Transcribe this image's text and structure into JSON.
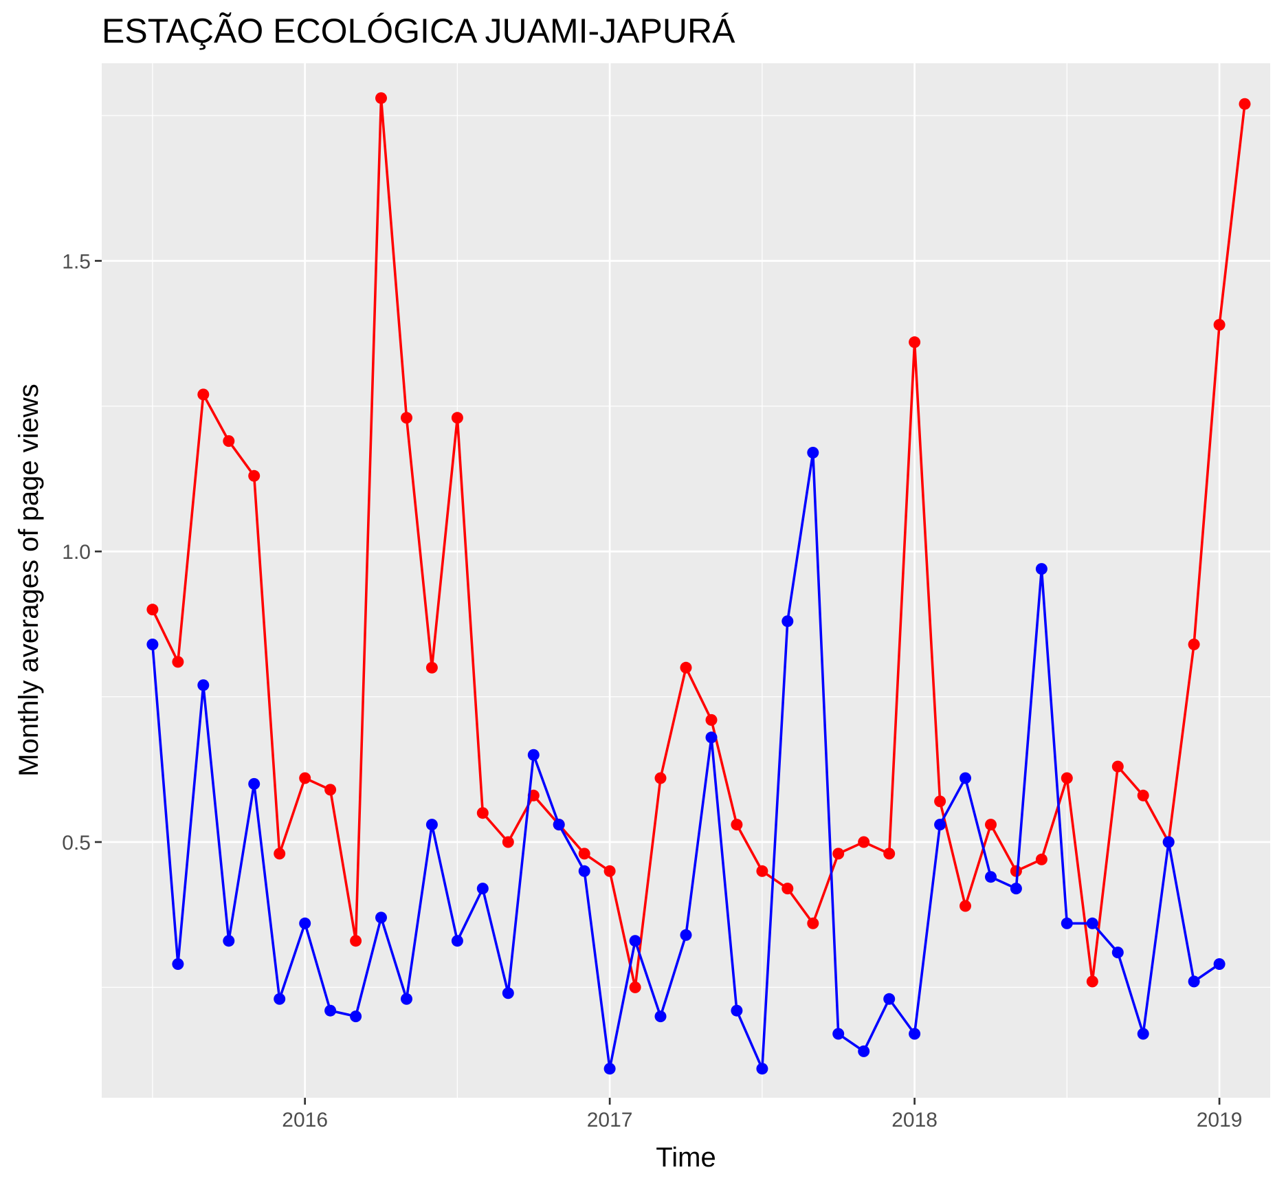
{
  "chart_data": {
    "type": "line",
    "title": "ESTAÇÃO ECOLÓGICA JUAMI-JAPURÁ",
    "xlabel": "Time",
    "ylabel": "Monthly averages of page views",
    "x_start": "2015-07",
    "x_ticks": [
      {
        "label": "2016",
        "value": "2016-01"
      },
      {
        "label": "2017",
        "value": "2017-01"
      },
      {
        "label": "2018",
        "value": "2018-01"
      },
      {
        "label": "2019",
        "value": "2019-01"
      }
    ],
    "y_ticks": [
      {
        "label": "0.5",
        "value": 0.5
      },
      {
        "label": "1.0",
        "value": 1.0
      },
      {
        "label": "1.5",
        "value": 1.5
      }
    ],
    "xlim": [
      "2015-05",
      "2019-03"
    ],
    "ylim": [
      0.06,
      1.84
    ],
    "grid": true,
    "legend": "none",
    "series": [
      {
        "color": "#ff0000",
        "values": [
          0.9,
          0.81,
          1.27,
          1.19,
          1.13,
          0.48,
          0.61,
          0.59,
          0.33,
          1.78,
          1.23,
          0.8,
          1.23,
          0.55,
          0.5,
          0.58,
          0.53,
          0.48,
          0.45,
          0.25,
          0.61,
          0.8,
          0.71,
          0.53,
          0.45,
          0.42,
          0.36,
          0.48,
          0.5,
          0.48,
          1.36,
          0.57,
          0.39,
          0.53,
          0.45,
          0.47,
          0.61,
          0.26,
          0.63,
          0.58,
          0.5,
          0.84,
          1.39,
          1.77
        ]
      },
      {
        "color": "#0000ff",
        "values": [
          0.84,
          0.29,
          0.77,
          0.33,
          0.6,
          0.23,
          0.36,
          0.21,
          0.2,
          0.37,
          0.23,
          0.53,
          0.33,
          0.42,
          0.24,
          0.65,
          0.53,
          0.45,
          0.11,
          0.33,
          0.2,
          0.34,
          0.68,
          0.21,
          0.11,
          0.88,
          1.17,
          0.17,
          0.14,
          0.23,
          0.17,
          0.53,
          0.61,
          0.44,
          0.42,
          0.97,
          0.36,
          0.36,
          0.31,
          0.17,
          0.5,
          0.26,
          0.29
        ]
      }
    ]
  }
}
